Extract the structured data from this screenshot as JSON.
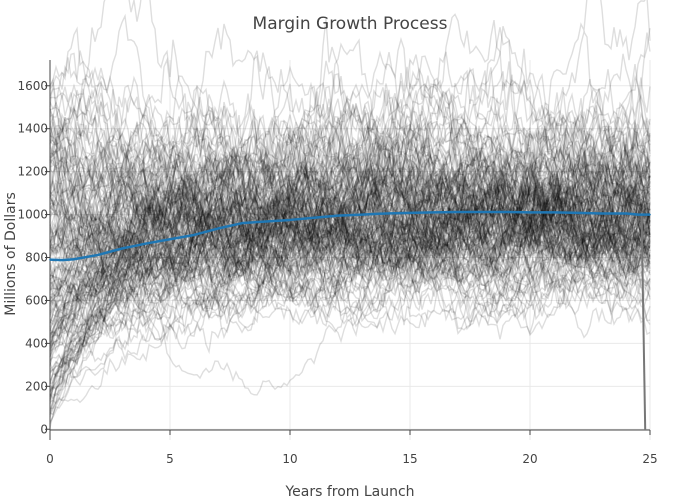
{
  "chart_data": {
    "type": "line",
    "title": "Margin Growth Process",
    "xlabel": "Years from Launch",
    "ylabel": "Millions of Dollars",
    "xlim": [
      0,
      25
    ],
    "ylim": [
      -50,
      1720
    ],
    "x_ticks": [
      0,
      5,
      10,
      15,
      20,
      25
    ],
    "y_ticks": [
      0,
      200,
      400,
      600,
      800,
      1000,
      1200,
      1400,
      1600
    ],
    "grid": true,
    "legend": "none",
    "simulated_paths": {
      "count": 180,
      "color": "#000000",
      "opacity": 0.13,
      "steady_state": 1000,
      "start_min": 0,
      "start_max": 1600
    },
    "series": [
      {
        "x": [
          0,
          0.5,
          1,
          2,
          3,
          4,
          5,
          6,
          7,
          8,
          9,
          10,
          11,
          12,
          13,
          14,
          15,
          16,
          17,
          18,
          19,
          20,
          21,
          22,
          23,
          24,
          24.5,
          25
        ],
        "values": [
          790,
          788,
          792,
          812,
          842,
          865,
          885,
          905,
          935,
          960,
          968,
          975,
          985,
          995,
          1000,
          1005,
          1008,
          1010,
          1012,
          1012,
          1012,
          1010,
          1010,
          1008,
          1005,
          1005,
          1000,
          1000
        ],
        "color": "#1f77b4"
      }
    ],
    "drop_line": {
      "x": [
        24.65,
        24.8
      ],
      "values": [
        1000,
        0
      ],
      "color": "#777777"
    }
  }
}
